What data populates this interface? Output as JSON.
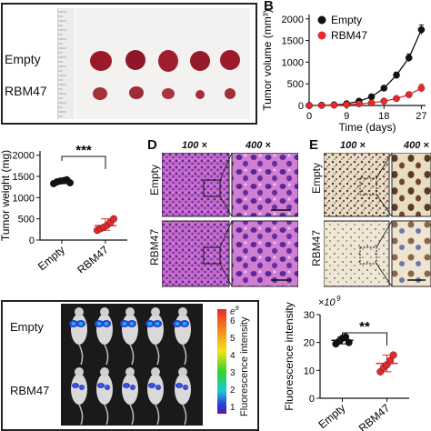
{
  "panel_a": {
    "row_labels": [
      "Empty",
      "RBM47"
    ],
    "colors": {
      "tumor_empty": "#9a1a2a",
      "tumor_rbm47": "#a5323a",
      "ruler": "#e8e8e8"
    }
  },
  "panel_b": {
    "letter": "B",
    "ylabel": "Tumor volume (mm³)",
    "xlabel": "Time (days)",
    "legend": [
      "Empty",
      "RBM47"
    ]
  },
  "panel_c": {
    "ylabel": "Tumor weight (mg)",
    "significance": "***"
  },
  "panel_d": {
    "letter": "D",
    "headers": [
      "100 ×",
      "400 ×"
    ],
    "row_labels": [
      "Empty",
      "RBM47"
    ]
  },
  "panel_e": {
    "letter": "E",
    "headers": [
      "100 ×",
      "400 ×"
    ],
    "row_labels": [
      "Empty",
      "RBM47"
    ]
  },
  "panel_f": {
    "row_labels": [
      "Empty",
      "RBM47"
    ],
    "scale_label": "Fluorescence intensity",
    "scale_exp": "e",
    "scale_exp_power": "9",
    "scale_ticks": [
      "6",
      "5",
      "4",
      "3",
      "2",
      "1"
    ]
  },
  "panel_g": {
    "ylabel": "Fluorescence intensity",
    "multiplier_base": "×10",
    "multiplier_power": "9",
    "significance": "**"
  },
  "chart_data": [
    {
      "type": "line",
      "xlabel": "Time (days)",
      "ylabel": "Tumor volume (mm³)",
      "x": [
        0,
        3,
        6,
        9,
        12,
        15,
        18,
        21,
        24,
        27
      ],
      "xticks": [
        0,
        9,
        18,
        27
      ],
      "yticks": [
        0,
        500,
        1000,
        1500,
        2000
      ],
      "xlim": [
        0,
        28
      ],
      "ylim": [
        0,
        2100
      ],
      "legend": "top-left",
      "series": [
        {
          "name": "Empty",
          "color": "#111111",
          "values": [
            0,
            5,
            15,
            40,
            100,
            200,
            400,
            700,
            1100,
            1750
          ],
          "errors": [
            0,
            2,
            5,
            10,
            20,
            30,
            50,
            70,
            90,
            110
          ]
        },
        {
          "name": "RBM47",
          "color": "#e8282d",
          "values": [
            0,
            3,
            8,
            20,
            40,
            60,
            100,
            160,
            250,
            400
          ],
          "errors": [
            0,
            1,
            3,
            6,
            10,
            15,
            25,
            35,
            50,
            90
          ]
        }
      ]
    },
    {
      "type": "scatter",
      "ylabel": "Tumor weight (mg)",
      "categories": [
        "Empty",
        "RBM47"
      ],
      "yticks": [
        0,
        500,
        1000,
        1500,
        2000
      ],
      "ylim": [
        0,
        2100
      ],
      "series": [
        {
          "name": "Empty",
          "color": "#111111",
          "values": [
            1330,
            1370,
            1390,
            1400,
            1420,
            1350
          ],
          "mean": 1380
        },
        {
          "name": "RBM47",
          "color": "#e8282d",
          "values": [
            230,
            270,
            300,
            350,
            420,
            500
          ],
          "mean": 340
        }
      ]
    },
    {
      "type": "scatter",
      "ylabel": "Fluorescence intensity",
      "categories": [
        "Empty",
        "RBM47"
      ],
      "yticks": [
        0,
        10,
        20,
        30
      ],
      "ylim": [
        0,
        30
      ],
      "series": [
        {
          "name": "Empty",
          "color": "#111111",
          "values": [
            19.5,
            20.5,
            21.5,
            22.0,
            20.0
          ],
          "mean": 20.8
        },
        {
          "name": "RBM47",
          "color": "#e8282d",
          "values": [
            9.5,
            11.0,
            12.0,
            13.5,
            15.5
          ],
          "mean": 12.5
        }
      ]
    }
  ]
}
